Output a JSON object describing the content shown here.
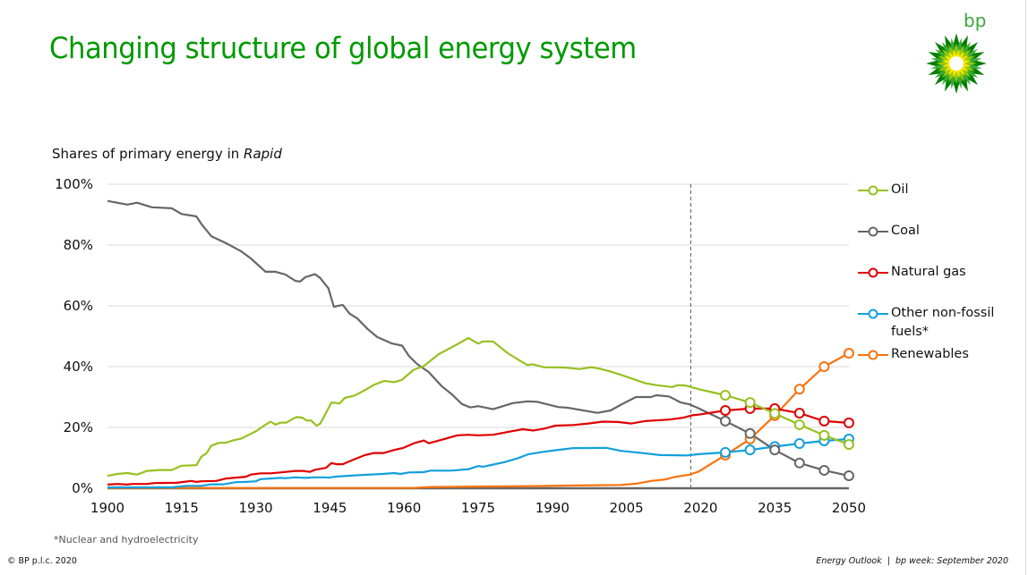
{
  "header": {
    "title": "Changing structure of global energy system",
    "logo_text": "bp"
  },
  "subtitle": {
    "prefix": "Shares of primary energy in ",
    "scenario": "Rapid"
  },
  "footer": {
    "footnote": "*Nuclear and hydroelectricity",
    "copyright": "© BP p.l.c. 2020",
    "right": "Energy Outlook  |  bp week: September 2020"
  },
  "colors": {
    "title": "#009a00",
    "oil": "#95c11f",
    "coal": "#666666",
    "gas": "#e00000",
    "other": "#12a0dc",
    "renewables": "#f7730e",
    "grid": "#d9d9d9",
    "axis": "#666666"
  },
  "chart_data": {
    "type": "line",
    "title": "Shares of primary energy in Rapid",
    "xlabel": "",
    "ylabel": "",
    "xlim": [
      1900,
      2050
    ],
    "ylim": [
      0,
      100
    ],
    "x_ticks": [
      1900,
      1915,
      1930,
      1945,
      1960,
      1975,
      1990,
      2005,
      2020,
      2035,
      2050
    ],
    "x_tick_labels": [
      "1900",
      "1915",
      "1930",
      "1945",
      "1960",
      "1975",
      "1990",
      "2005",
      "2020",
      "2035",
      "2050"
    ],
    "y_ticks": [
      0,
      20,
      40,
      60,
      80,
      100
    ],
    "y_tick_labels": [
      "0%",
      "20%",
      "40%",
      "60%",
      "80%",
      "100%"
    ],
    "grid": true,
    "legend_position": "right",
    "projection_start_marker": 2018,
    "projection_years": [
      2025,
      2030,
      2035,
      2040,
      2045,
      2050
    ],
    "series": [
      {
        "key": "oil",
        "name": "Oil",
        "color": "#95c11f",
        "history": [
          [
            1900,
            4.1
          ],
          [
            1902,
            4.7
          ],
          [
            1904,
            5.0
          ],
          [
            1906,
            4.5
          ],
          [
            1908,
            5.7
          ],
          [
            1910.5,
            6.0
          ],
          [
            1913,
            6.0
          ],
          [
            1915,
            7.4
          ],
          [
            1918,
            7.6
          ],
          [
            1919,
            10.4
          ],
          [
            1920,
            11.4
          ],
          [
            1921,
            14.0
          ],
          [
            1922.5,
            14.9
          ],
          [
            1924,
            15.0
          ],
          [
            1925.5,
            15.8
          ],
          [
            1927,
            16.3
          ],
          [
            1928.6,
            17.6
          ],
          [
            1930,
            18.7
          ],
          [
            1931.5,
            20.4
          ],
          [
            1933,
            21.9
          ],
          [
            1934,
            20.9
          ],
          [
            1935,
            21.6
          ],
          [
            1936.2,
            21.6
          ],
          [
            1937.6,
            22.9
          ],
          [
            1938.3,
            23.4
          ],
          [
            1939.4,
            23.2
          ],
          [
            1940.3,
            22.3
          ],
          [
            1941.2,
            22.3
          ],
          [
            1942.3,
            20.6
          ],
          [
            1943,
            21.2
          ],
          [
            1943.6,
            22.9
          ],
          [
            1945.3,
            28.2
          ],
          [
            1947,
            27.9
          ],
          [
            1948,
            29.7
          ],
          [
            1950,
            30.5
          ],
          [
            1952,
            32.2
          ],
          [
            1954,
            34.1
          ],
          [
            1956,
            35.3
          ],
          [
            1958,
            34.9
          ],
          [
            1959.5,
            35.6
          ],
          [
            1962,
            39.0
          ],
          [
            1964,
            40.2
          ],
          [
            1967,
            44.1
          ],
          [
            1970.7,
            47.3
          ],
          [
            1973,
            49.4
          ],
          [
            1975,
            47.6
          ],
          [
            1976,
            48.3
          ],
          [
            1978,
            48.3
          ],
          [
            1981,
            44.4
          ],
          [
            1983.4,
            42.0
          ],
          [
            1985,
            40.5
          ],
          [
            1986,
            40.8
          ],
          [
            1988.3,
            39.8
          ],
          [
            1992.5,
            39.7
          ],
          [
            1995.5,
            39.2
          ],
          [
            1997.9,
            39.8
          ],
          [
            1999.7,
            39.3
          ],
          [
            2001.5,
            38.5
          ],
          [
            2003.9,
            37.3
          ],
          [
            2006.4,
            35.9
          ],
          [
            2008.7,
            34.6
          ],
          [
            2011,
            33.9
          ],
          [
            2014.2,
            33.3
          ],
          [
            2015.4,
            33.9
          ],
          [
            2016.9,
            33.8
          ],
          [
            2019.6,
            32.6
          ]
        ],
        "projection": [
          30.6,
          28.2,
          24.6,
          20.9,
          17.4,
          14.4
        ]
      },
      {
        "key": "coal",
        "name": "Coal",
        "color": "#666666",
        "history": [
          [
            1900,
            94.5
          ],
          [
            1904,
            93.3
          ],
          [
            1906,
            93.9
          ],
          [
            1909,
            92.4
          ],
          [
            1913,
            92.1
          ],
          [
            1915,
            90.2
          ],
          [
            1918,
            89.4
          ],
          [
            1919,
            86.9
          ],
          [
            1921,
            82.9
          ],
          [
            1924,
            80.6
          ],
          [
            1927,
            78.0
          ],
          [
            1929,
            75.6
          ],
          [
            1932,
            71.2
          ],
          [
            1934,
            71.2
          ],
          [
            1936,
            70.3
          ],
          [
            1938,
            68.2
          ],
          [
            1939,
            68.0
          ],
          [
            1940,
            69.4
          ],
          [
            1942,
            70.4
          ],
          [
            1943,
            69.2
          ],
          [
            1944.7,
            65.8
          ],
          [
            1945.8,
            59.7
          ],
          [
            1947.6,
            60.3
          ],
          [
            1949,
            57.4
          ],
          [
            1950.5,
            55.9
          ],
          [
            1952.6,
            52.4
          ],
          [
            1954.6,
            49.7
          ],
          [
            1957.6,
            47.6
          ],
          [
            1959.6,
            46.9
          ],
          [
            1961,
            43.5
          ],
          [
            1962.6,
            40.9
          ],
          [
            1965,
            38.2
          ],
          [
            1967.6,
            33.6
          ],
          [
            1969.6,
            31.0
          ],
          [
            1971.7,
            27.7
          ],
          [
            1973.4,
            26.6
          ],
          [
            1975,
            27.0
          ],
          [
            1978,
            26.0
          ],
          [
            1982,
            28.0
          ],
          [
            1985,
            28.6
          ],
          [
            1987,
            28.4
          ],
          [
            1991.2,
            26.7
          ],
          [
            1993,
            26.5
          ],
          [
            1999.1,
            24.8
          ],
          [
            2001.8,
            25.6
          ],
          [
            2003.9,
            27.5
          ],
          [
            2006.9,
            30.0
          ],
          [
            2010,
            30.0
          ],
          [
            2011,
            30.6
          ],
          [
            2013.6,
            30.2
          ],
          [
            2016,
            28.2
          ],
          [
            2017.8,
            27.6
          ],
          [
            2019.6,
            26.3
          ]
        ],
        "projection": [
          22.1,
          18.0,
          12.6,
          8.3,
          5.9,
          4.1
        ]
      },
      {
        "key": "gas",
        "name": "Natural gas",
        "color": "#e00000",
        "history": [
          [
            1900,
            1.2
          ],
          [
            1902,
            1.4
          ],
          [
            1904,
            1.2
          ],
          [
            1905,
            1.4
          ],
          [
            1908,
            1.4
          ],
          [
            1909.5,
            1.7
          ],
          [
            1914,
            1.8
          ],
          [
            1916,
            2.2
          ],
          [
            1917,
            2.4
          ],
          [
            1918,
            2.1
          ],
          [
            1919,
            2.3
          ],
          [
            1922,
            2.4
          ],
          [
            1924,
            3.2
          ],
          [
            1926,
            3.5
          ],
          [
            1928,
            3.8
          ],
          [
            1929,
            4.5
          ],
          [
            1931,
            4.9
          ],
          [
            1933,
            4.9
          ],
          [
            1935,
            5.2
          ],
          [
            1938,
            5.7
          ],
          [
            1939.5,
            5.7
          ],
          [
            1941,
            5.4
          ],
          [
            1942,
            6.1
          ],
          [
            1944.2,
            6.7
          ],
          [
            1945.3,
            8.3
          ],
          [
            1946.3,
            7.9
          ],
          [
            1947.6,
            7.9
          ],
          [
            1949.6,
            9.3
          ],
          [
            1952.1,
            10.9
          ],
          [
            1953.9,
            11.6
          ],
          [
            1955.9,
            11.6
          ],
          [
            1958,
            12.6
          ],
          [
            1959.9,
            13.3
          ],
          [
            1962,
            14.8
          ],
          [
            1964,
            15.7
          ],
          [
            1965,
            14.8
          ],
          [
            1966.6,
            15.5
          ],
          [
            1968.4,
            16.3
          ],
          [
            1970.8,
            17.4
          ],
          [
            1973.1,
            17.6
          ],
          [
            1974.9,
            17.4
          ],
          [
            1978,
            17.6
          ],
          [
            1981.6,
            18.7
          ],
          [
            1984,
            19.4
          ],
          [
            1986.1,
            19.0
          ],
          [
            1988.3,
            19.6
          ],
          [
            1990.6,
            20.6
          ],
          [
            1994.2,
            20.8
          ],
          [
            1997.3,
            21.3
          ],
          [
            2000.2,
            21.9
          ],
          [
            2003.3,
            21.8
          ],
          [
            2006,
            21.3
          ],
          [
            2008.7,
            22.1
          ],
          [
            2013.6,
            22.6
          ],
          [
            2016.5,
            23.2
          ],
          [
            2018.3,
            24.0
          ],
          [
            2019.6,
            24.2
          ]
        ],
        "projection": [
          25.6,
          26.2,
          26.2,
          24.7,
          22.1,
          21.5
        ]
      },
      {
        "key": "other",
        "name": "Other non-fossil fuels*",
        "name_lines": [
          "Other non-fossil",
          "fuels*"
        ],
        "color": "#12a0dc",
        "history": [
          [
            1900,
            0.3
          ],
          [
            1913,
            0.3
          ],
          [
            1916,
            0.8
          ],
          [
            1919,
            0.8
          ],
          [
            1921,
            1.3
          ],
          [
            1923.5,
            1.3
          ],
          [
            1926,
            2.0
          ],
          [
            1928,
            2.1
          ],
          [
            1930,
            2.3
          ],
          [
            1931,
            3.0
          ],
          [
            1933,
            3.2
          ],
          [
            1935,
            3.4
          ],
          [
            1936,
            3.3
          ],
          [
            1938,
            3.6
          ],
          [
            1940,
            3.4
          ],
          [
            1942,
            3.6
          ],
          [
            1944,
            3.6
          ],
          [
            1945,
            3.5
          ],
          [
            1946,
            3.8
          ],
          [
            1947.8,
            4.0
          ],
          [
            1952,
            4.4
          ],
          [
            1955.7,
            4.7
          ],
          [
            1958,
            5.0
          ],
          [
            1959.3,
            4.7
          ],
          [
            1961,
            5.2
          ],
          [
            1964,
            5.3
          ],
          [
            1965.3,
            5.8
          ],
          [
            1969.5,
            5.8
          ],
          [
            1973.1,
            6.3
          ],
          [
            1975,
            7.3
          ],
          [
            1976,
            7.1
          ],
          [
            1978,
            7.8
          ],
          [
            1980.3,
            8.6
          ],
          [
            1982.9,
            9.8
          ],
          [
            1985.2,
            11.2
          ],
          [
            1988.3,
            12.0
          ],
          [
            1990.6,
            12.5
          ],
          [
            1994.2,
            13.2
          ],
          [
            2000.9,
            13.3
          ],
          [
            2003.9,
            12.3
          ],
          [
            2007.5,
            11.7
          ],
          [
            2011.8,
            10.9
          ],
          [
            2017.2,
            10.8
          ],
          [
            2019.6,
            11.2
          ]
        ],
        "projection": [
          11.8,
          12.6,
          13.7,
          14.7,
          15.6,
          16.2
        ]
      },
      {
        "key": "renewables",
        "name": "Renewables",
        "color": "#f7730e",
        "history": [
          [
            1900,
            0.1
          ],
          [
            1961.7,
            0.1
          ],
          [
            1965.3,
            0.4
          ],
          [
            1985.8,
            0.7
          ],
          [
            1999.1,
            1.0
          ],
          [
            2003.9,
            1.1
          ],
          [
            2006.9,
            1.5
          ],
          [
            2010,
            2.4
          ],
          [
            2012.9,
            2.9
          ],
          [
            2014.7,
            3.7
          ],
          [
            2017.8,
            4.5
          ],
          [
            2019.6,
            5.5
          ]
        ],
        "projection": [
          10.9,
          16.2,
          23.9,
          32.6,
          40.0,
          44.4
        ]
      }
    ]
  }
}
